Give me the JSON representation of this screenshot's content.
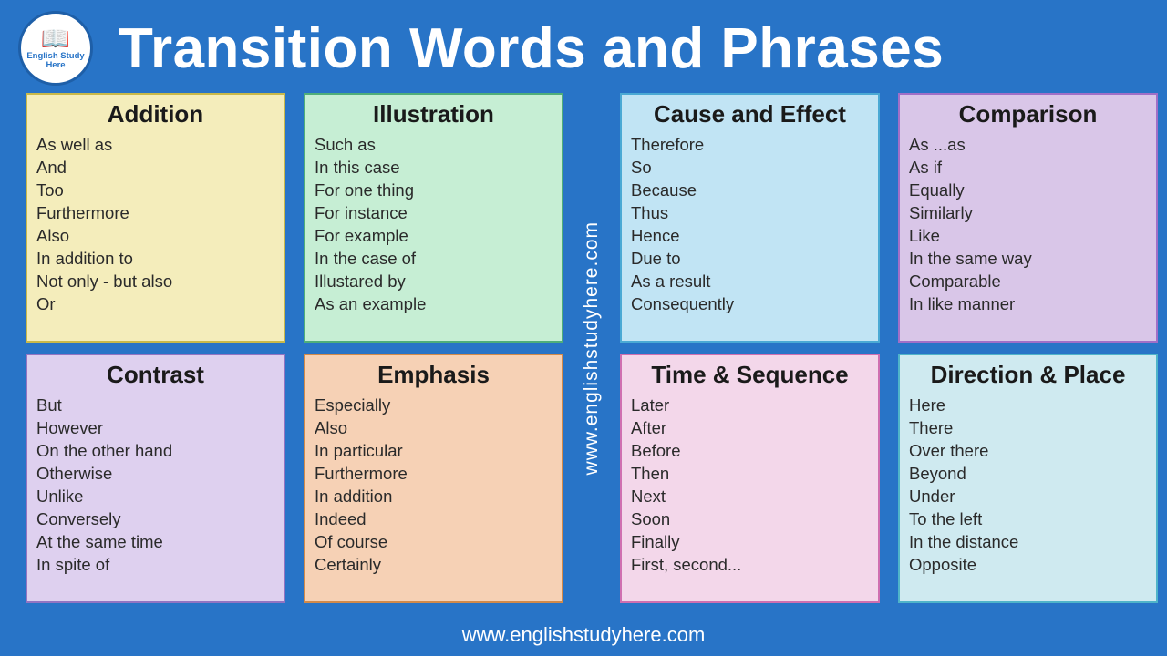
{
  "title": "Transition Words and Phrases",
  "logo": {
    "label": "English Study\nHere",
    "icon_name": "book-icon"
  },
  "watermark": "www.englishstudyhere.com",
  "footer": "www.englishstudyhere.com",
  "colors": {
    "background": "#2874c7",
    "title_text": "#ffffff",
    "card_text": "#2a2a2a",
    "card_title_text": "#1a1a1a"
  },
  "layout": {
    "cols": 4,
    "rows": 2,
    "middle_gap_for_watermark": true
  },
  "typography": {
    "title_fontsize": 62,
    "card_title_fontsize": 26,
    "item_fontsize": 18.5,
    "watermark_fontsize": 21,
    "footer_fontsize": 22
  },
  "cards": [
    {
      "title": "Addition",
      "bg": "#f4edbb",
      "border": "#c9b94a",
      "items": [
        "As well as",
        "And",
        "Too",
        "Furthermore",
        "Also",
        "In addition to",
        "Not only - but also",
        "Or"
      ]
    },
    {
      "title": "Illustration",
      "bg": "#c6eed4",
      "border": "#4fae7a",
      "items": [
        "Such as",
        "In this case",
        "For one thing",
        "For instance",
        "For example",
        "In the case of",
        "Illustared by",
        "As an example"
      ]
    },
    {
      "title": "Cause and Effect",
      "bg": "#c1e4f4",
      "border": "#4aa9d4",
      "items": [
        "Therefore",
        "So",
        "Because",
        "Thus",
        "Hence",
        "Due to",
        "As a result",
        "Consequently"
      ]
    },
    {
      "title": "Comparison",
      "bg": "#d9c6e8",
      "border": "#a06fc7",
      "items": [
        "As ...as",
        "As if",
        "Equally",
        "Similarly",
        "Like",
        "In the same way",
        "Comparable",
        "In like manner"
      ]
    },
    {
      "title": "Contrast",
      "bg": "#ded0ef",
      "border": "#9274c2",
      "items": [
        "But",
        "However",
        "On the other hand",
        "Otherwise",
        "Unlike",
        "Conversely",
        "At the same time",
        "In spite of"
      ]
    },
    {
      "title": "Emphasis",
      "bg": "#f6d1b5",
      "border": "#d28a4a",
      "items": [
        "Especially",
        "Also",
        "In particular",
        "Furthermore",
        "In addition",
        "Indeed",
        "Of course",
        "Certainly"
      ]
    },
    {
      "title": "Time & Sequence",
      "bg": "#f3d7ea",
      "border": "#cf6fb0",
      "items": [
        "Later",
        "After",
        "Before",
        "Then",
        "Next",
        "Soon",
        "Finally",
        "First, second..."
      ]
    },
    {
      "title": "Direction & Place",
      "bg": "#cfeaf0",
      "border": "#4fb4c9",
      "items": [
        "Here",
        "There",
        "Over there",
        "Beyond",
        "Under",
        "To the left",
        "In the distance",
        "Opposite"
      ]
    }
  ]
}
